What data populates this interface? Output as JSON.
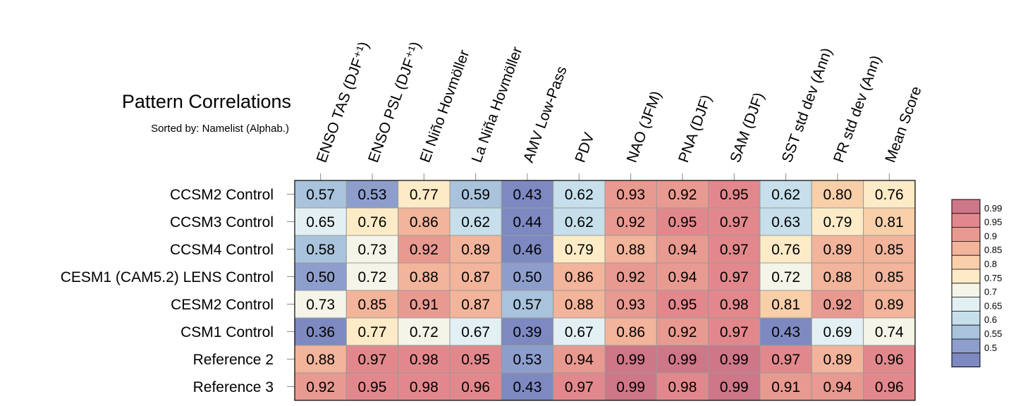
{
  "chart_data": {
    "type": "heatmap",
    "title": "Pattern Correlations",
    "subtitle": "Sorted by: Namelist (Alphab.)",
    "columns": [
      "ENSO TAS (DJF⁺¹)",
      "ENSO PSL (DJF⁺¹)",
      "El Niño Hovmöller",
      "La Niña Hovmöller",
      "AMV Low-Pass",
      "PDV",
      "NAO (JFM)",
      "PNA (DJF)",
      "SAM (DJF)",
      "SST std dev (Ann)",
      "PR std dev (Ann)",
      "Mean Score"
    ],
    "rows": [
      "CCSM2 Control",
      "CCSM3 Control",
      "CCSM4 Control",
      "CESM1 (CAM5.2) LENS Control",
      "CESM2 Control",
      "CSM1 Control",
      "Reference 2",
      "Reference 3"
    ],
    "values": [
      [
        "0.57",
        "0.53",
        "0.77",
        "0.59",
        "0.43",
        "0.62",
        "0.93",
        "0.92",
        "0.95",
        "0.62",
        "0.80",
        "0.76"
      ],
      [
        "0.65",
        "0.76",
        "0.86",
        "0.62",
        "0.44",
        "0.62",
        "0.92",
        "0.95",
        "0.97",
        "0.63",
        "0.79",
        "0.81"
      ],
      [
        "0.58",
        "0.73",
        "0.92",
        "0.89",
        "0.46",
        "0.79",
        "0.88",
        "0.94",
        "0.97",
        "0.76",
        "0.89",
        "0.85"
      ],
      [
        "0.50",
        "0.72",
        "0.88",
        "0.87",
        "0.50",
        "0.86",
        "0.92",
        "0.94",
        "0.97",
        "0.72",
        "0.88",
        "0.85"
      ],
      [
        "0.73",
        "0.85",
        "0.91",
        "0.87",
        "0.57",
        "0.88",
        "0.93",
        "0.95",
        "0.98",
        "0.81",
        "0.92",
        "0.89"
      ],
      [
        "0.36",
        "0.77",
        "0.72",
        "0.67",
        "0.39",
        "0.67",
        "0.86",
        "0.92",
        "0.97",
        "0.43",
        "0.69",
        "0.74"
      ],
      [
        "0.88",
        "0.97",
        "0.98",
        "0.95",
        "0.53",
        "0.94",
        "0.99",
        "0.99",
        "0.99",
        "0.97",
        "0.89",
        "0.96"
      ],
      [
        "0.92",
        "0.95",
        "0.98",
        "0.96",
        "0.43",
        "0.97",
        "0.99",
        "0.98",
        "0.99",
        "0.91",
        "0.94",
        "0.96"
      ]
    ],
    "colorbar": {
      "ticks": [
        "0.99",
        "0.95",
        "0.9",
        "0.85",
        "0.8",
        "0.75",
        "0.7",
        "0.65",
        "0.6",
        "0.55",
        "0.5"
      ],
      "colors": [
        "#cd7788",
        "#e2888c",
        "#e89a90",
        "#f2b49a",
        "#f8cfa9",
        "#fcebc6",
        "#f4f4e8",
        "#e3f0f3",
        "#c6dfea",
        "#a9c3dc",
        "#8e9ecc",
        "#7d89c0"
      ]
    }
  }
}
